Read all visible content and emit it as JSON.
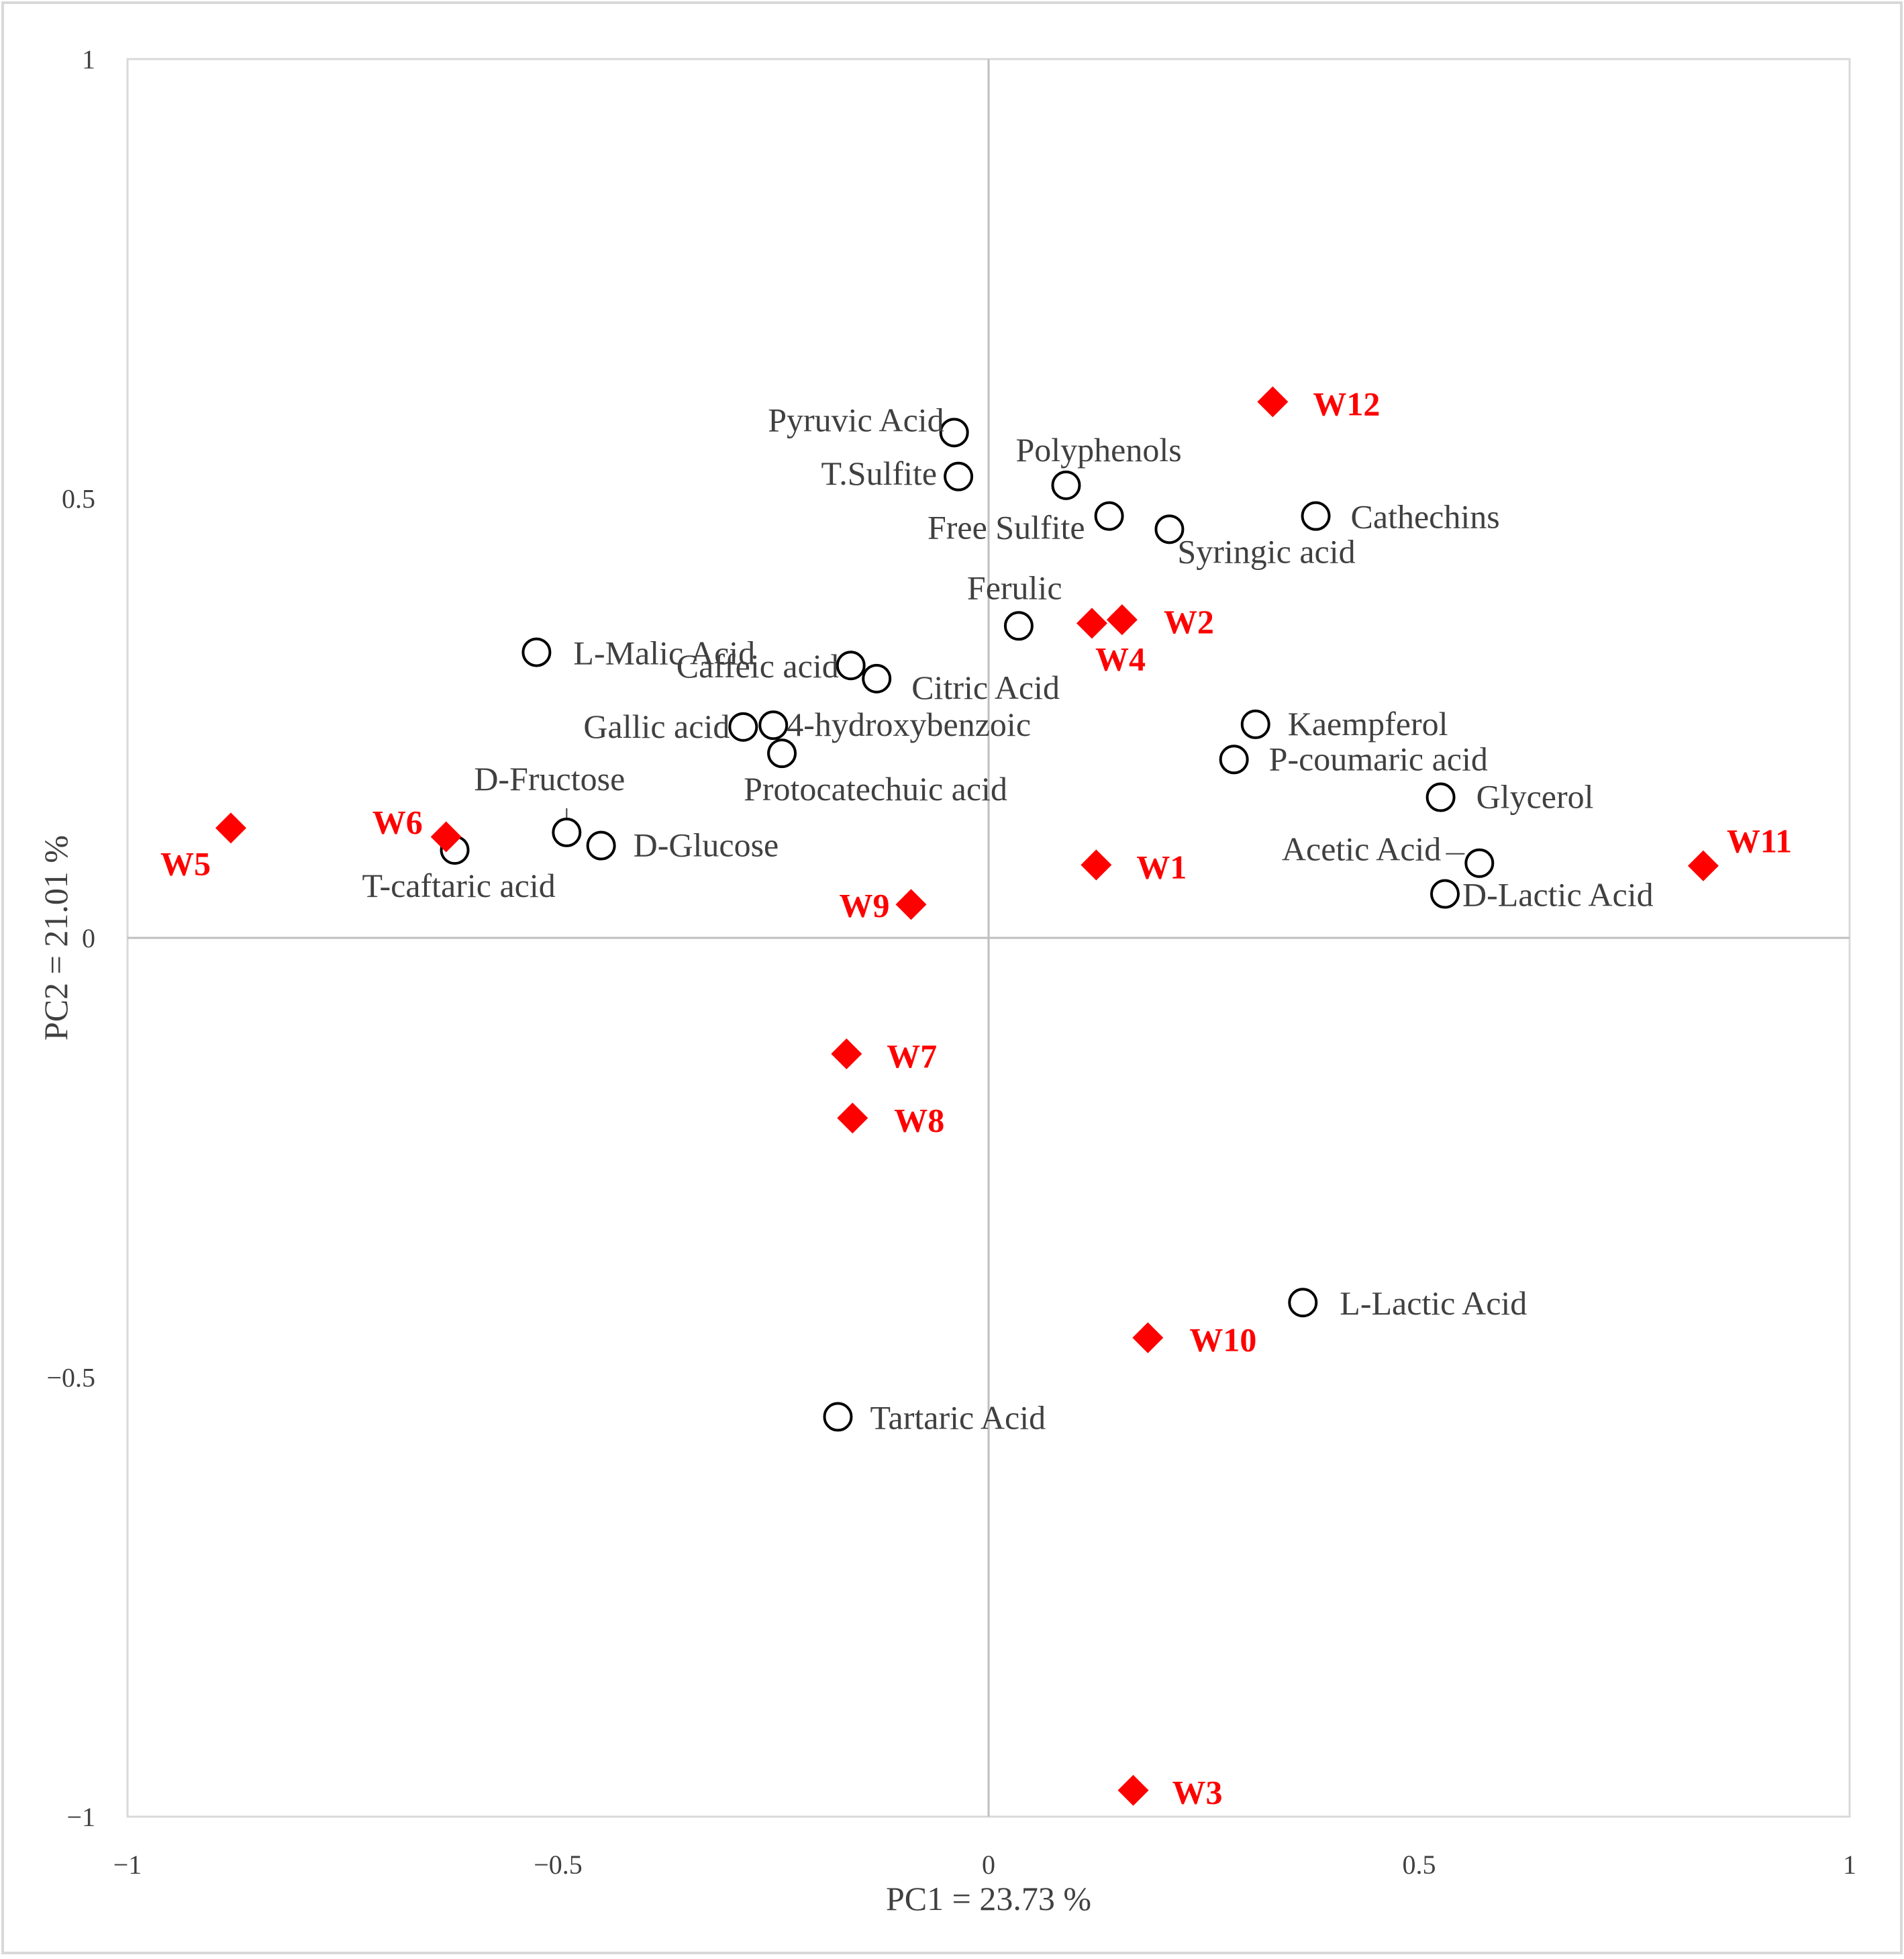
{
  "chart_data": {
    "type": "scatter",
    "xlabel": "PC1 = 23.73 %",
    "ylabel": "PC2 = 21.01 %",
    "xlim": [
      -1,
      1
    ],
    "ylim": [
      -1,
      1
    ],
    "x_ticks": [
      "−1",
      "−0.5",
      "0",
      "0.5",
      "1"
    ],
    "y_ticks": [
      "1",
      "0.5",
      "0",
      "−0.5",
      "−1"
    ],
    "grid": false,
    "colors": {
      "samples": "#ff0000",
      "variables": "#000000",
      "axis_lines": "#bfbfbf"
    },
    "series": [
      {
        "marker": "open-circle",
        "points": [
          {
            "label": "Pyruvic Acid",
            "x": -0.04,
            "y": 0.575
          },
          {
            "label": "T.Sulfite",
            "x": -0.035,
            "y": 0.525
          },
          {
            "label": "Polyphenols",
            "x": 0.09,
            "y": 0.515
          },
          {
            "label": "Free Sulfite",
            "x": 0.14,
            "y": 0.48
          },
          {
            "label": "Syringic acid",
            "x": 0.21,
            "y": 0.465
          },
          {
            "label": "Cathechins",
            "x": 0.38,
            "y": 0.48
          },
          {
            "label": "Ferulic",
            "x": 0.035,
            "y": 0.355
          },
          {
            "label": "Caffeic acid",
            "x": -0.16,
            "y": 0.31
          },
          {
            "label": "Citric Acid",
            "x": -0.13,
            "y": 0.295
          },
          {
            "label": "L-Malic Acid",
            "x": -0.525,
            "y": 0.325
          },
          {
            "label": "Gallic acid",
            "x": -0.285,
            "y": 0.24
          },
          {
            "label": "4-hydroxybenzoic",
            "x": -0.25,
            "y": 0.242
          },
          {
            "label": "Protocatechuic acid",
            "x": -0.24,
            "y": 0.21
          },
          {
            "label": "Kaempferol",
            "x": 0.31,
            "y": 0.243
          },
          {
            "label": "P-coumaric acid",
            "x": 0.285,
            "y": 0.203
          },
          {
            "label": "Glycerol",
            "x": 0.525,
            "y": 0.16
          },
          {
            "label": "Acetic Acid",
            "x": 0.57,
            "y": 0.085
          },
          {
            "label": "D-Lactic Acid",
            "x": 0.53,
            "y": 0.05
          },
          {
            "label": "D-Fructose",
            "x": -0.49,
            "y": 0.12
          },
          {
            "label": "D-Glucose",
            "x": -0.45,
            "y": 0.105
          },
          {
            "label": "T-caftaric acid",
            "x": -0.62,
            "y": 0.1
          },
          {
            "label": "L-Lactic Acid",
            "x": 0.365,
            "y": -0.415
          },
          {
            "label": "Tartaric Acid",
            "x": -0.175,
            "y": -0.545
          }
        ]
      },
      {
        "marker": "filled-diamond",
        "points": [
          {
            "label": "W12",
            "x": 0.33,
            "y": 0.61
          },
          {
            "label": "W2",
            "x": 0.155,
            "y": 0.362
          },
          {
            "label": "W4",
            "x": 0.12,
            "y": 0.358
          },
          {
            "label": "W1",
            "x": 0.125,
            "y": 0.083
          },
          {
            "label": "W11",
            "x": 0.83,
            "y": 0.082
          },
          {
            "label": "W9",
            "x": -0.09,
            "y": 0.038
          },
          {
            "label": "W6",
            "x": -0.63,
            "y": 0.115
          },
          {
            "label": "W5",
            "x": -0.88,
            "y": 0.125
          },
          {
            "label": "W7",
            "x": -0.165,
            "y": -0.132
          },
          {
            "label": "W8",
            "x": -0.158,
            "y": -0.205
          },
          {
            "label": "W10",
            "x": 0.185,
            "y": -0.455
          },
          {
            "label": "W3",
            "x": 0.168,
            "y": -0.97
          }
        ]
      }
    ]
  }
}
